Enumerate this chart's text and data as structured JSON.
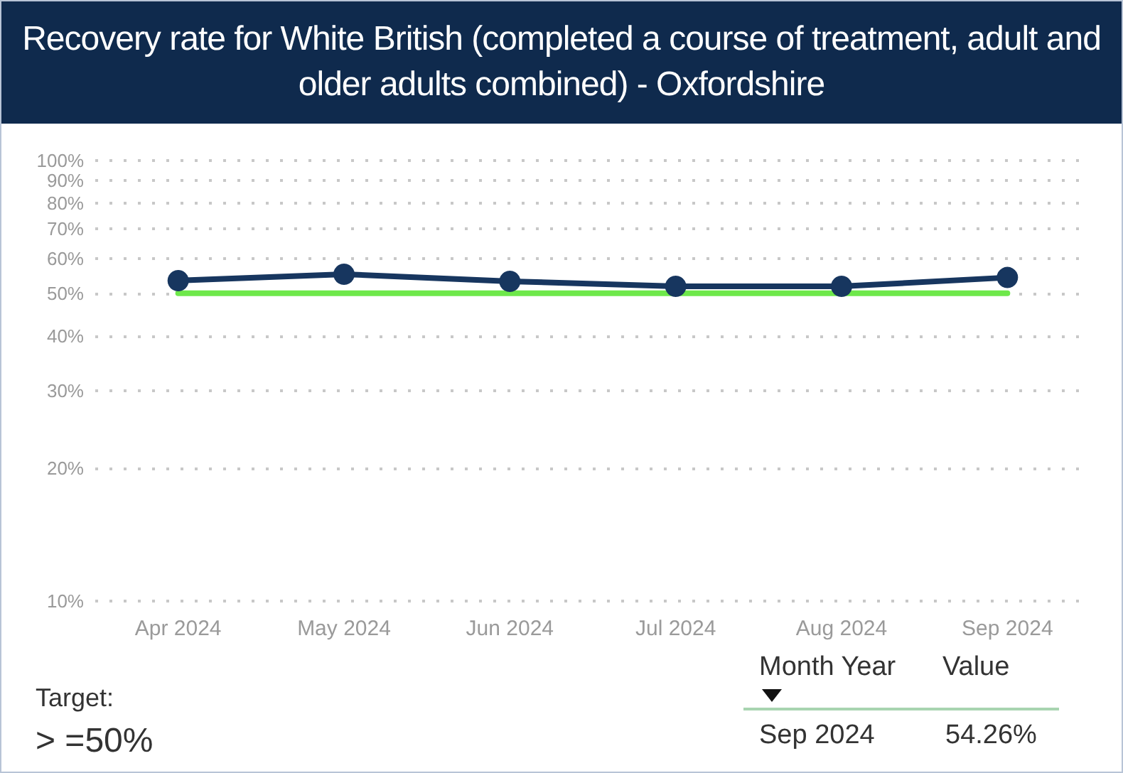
{
  "chart_data": {
    "type": "line",
    "title": "Recovery rate for White British (completed a course of treatment, adult and older adults combined) - Oxfordshire",
    "categories": [
      "Apr 2024",
      "May 2024",
      "Jun 2024",
      "Jul 2024",
      "Aug 2024",
      "Sep 2024"
    ],
    "series": [
      {
        "color": "#17365f",
        "values": [
          53.4,
          55.2,
          53.2,
          51.8,
          51.8,
          54.26
        ],
        "marker": "circle"
      },
      {
        "color": "#6ee84a",
        "values": [
          50,
          50,
          50,
          50,
          50,
          50
        ],
        "marker": "none"
      }
    ],
    "log": "y",
    "ylim": [
      10,
      100
    ],
    "yticks": [
      {
        "value": 10,
        "label": "10%"
      },
      {
        "value": 20,
        "label": "20%"
      },
      {
        "value": 30,
        "label": "30%"
      },
      {
        "value": 40,
        "label": "40%"
      },
      {
        "value": 50,
        "label": "50%"
      },
      {
        "value": 60,
        "label": "60%"
      },
      {
        "value": 70,
        "label": "70%"
      },
      {
        "value": 80,
        "label": "80%"
      },
      {
        "value": 90,
        "label": "90%"
      },
      {
        "value": 100,
        "label": "100%"
      }
    ],
    "grid": "y",
    "annotations": [
      "Target:",
      "> =50%",
      "Month Year",
      "Value",
      "Sep 2024",
      "54.26%"
    ]
  }
}
